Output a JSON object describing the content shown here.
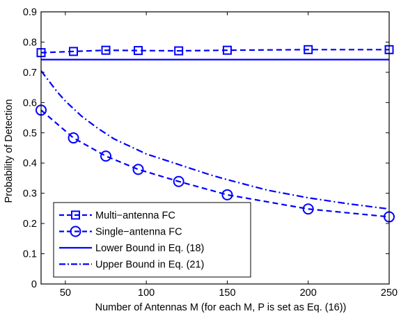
{
  "chart_data": {
    "type": "line",
    "xlabel": "Number of Antennas M (for each M, P is set as Eq. (16))",
    "ylabel": "Probability of Detection",
    "xlim": [
      35,
      250
    ],
    "ylim": [
      0,
      0.9
    ],
    "x_ticks": [
      50,
      100,
      150,
      200,
      250
    ],
    "y_ticks": [
      0,
      0.1,
      0.2,
      0.3,
      0.4,
      0.5,
      0.6,
      0.7,
      0.8,
      0.9
    ],
    "x_tick_labels": [
      "50",
      "100",
      "150",
      "200",
      "250"
    ],
    "y_tick_labels": [
      "0",
      "0.1",
      "0.2",
      "0.3",
      "0.4",
      "0.5",
      "0.6",
      "0.7",
      "0.8",
      "0.9"
    ],
    "grid": false,
    "legend_position": "bottom-left",
    "color": "#0000ff",
    "series": [
      {
        "name": "Multi−antenna FC",
        "line": "dashed",
        "marker": "square",
        "x": [
          35,
          55,
          75,
          95,
          120,
          150,
          200,
          250
        ],
        "y": [
          0.765,
          0.769,
          0.773,
          0.772,
          0.771,
          0.773,
          0.775,
          0.775
        ]
      },
      {
        "name": "Single−antenna FC",
        "line": "dashed",
        "marker": "circle",
        "x": [
          35,
          55,
          75,
          95,
          120,
          150,
          200,
          250
        ],
        "y": [
          0.575,
          0.483,
          0.423,
          0.379,
          0.339,
          0.295,
          0.248,
          0.222
        ]
      },
      {
        "name": "Lower Bound in Eq. (18)",
        "line": "solid",
        "marker": "none",
        "x": [
          35,
          250
        ],
        "y": [
          0.742,
          0.742
        ]
      },
      {
        "name": "Upper Bound in Eq. (21)",
        "line": "dashdot",
        "marker": "none",
        "x": [
          35,
          40,
          45,
          50,
          55,
          60,
          70,
          80,
          90,
          100,
          120,
          140,
          150,
          175,
          200,
          225,
          250
        ],
        "y": [
          0.705,
          0.67,
          0.635,
          0.605,
          0.58,
          0.555,
          0.515,
          0.48,
          0.455,
          0.43,
          0.395,
          0.36,
          0.345,
          0.31,
          0.285,
          0.265,
          0.248
        ]
      }
    ]
  }
}
